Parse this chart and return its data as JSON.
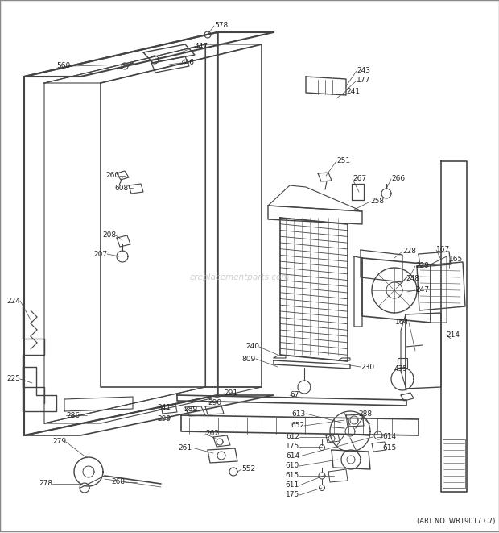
{
  "art_no": "(ART NO. WR19017 C7)",
  "watermark": "ereplacementparts.com",
  "bg_color": "#ffffff",
  "line_color": "#444444",
  "text_color": "#222222",
  "fig_width": 6.2,
  "fig_height": 6.61,
  "dpi": 100
}
